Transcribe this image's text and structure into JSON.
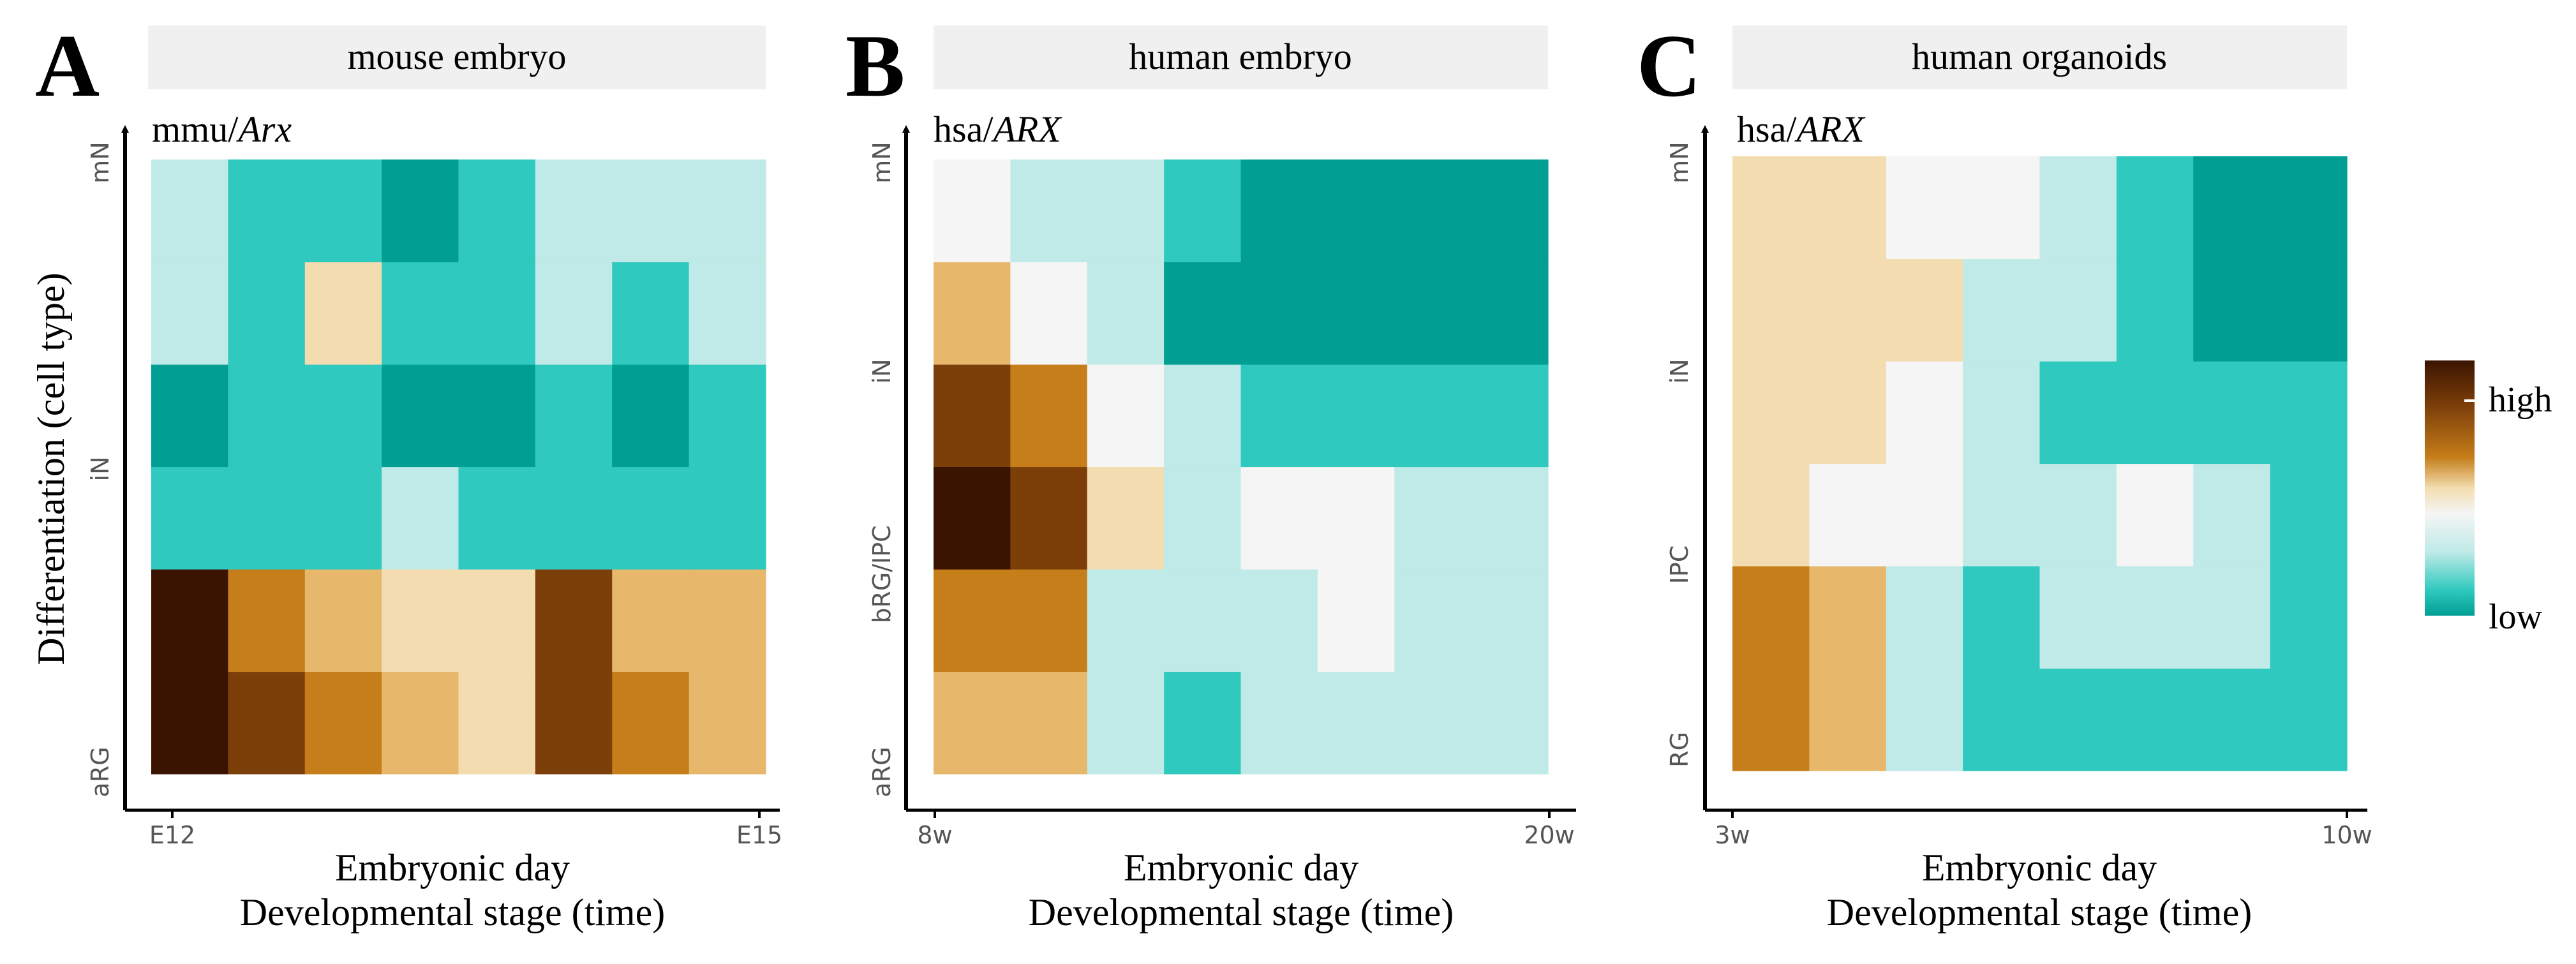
{
  "chart_data": [
    {
      "type": "heatmap",
      "panel_label": "A",
      "title": "mouse embryo",
      "gene_prefix": "mmu/",
      "gene": "Arx",
      "xlabel": "Embryonic day",
      "xlabel2": "Developmental stage (time)",
      "ylabel": "Differentiation (cell type)",
      "x_ticks": [
        "E12",
        "E15"
      ],
      "y_ticks": [
        "aRG",
        "iN",
        "mN"
      ],
      "rows": 6,
      "cols": 8,
      "values": [
        [
          1.0,
          0.85,
          0.7,
          0.6,
          0.5,
          0.9,
          0.7,
          0.65
        ],
        [
          0.95,
          0.8,
          0.6,
          0.55,
          0.45,
          0.85,
          0.6,
          0.6
        ],
        [
          0.1,
          0.15,
          0.15,
          0.2,
          0.15,
          0.1,
          0.15,
          0.15
        ],
        [
          0.05,
          0.1,
          0.1,
          0.05,
          0.05,
          0.1,
          0.05,
          0.1
        ],
        [
          0.2,
          0.15,
          0.45,
          0.1,
          0.15,
          0.2,
          0.15,
          0.2
        ],
        [
          0.25,
          0.15,
          0.1,
          0.05,
          0.15,
          0.2,
          0.3,
          0.25
        ]
      ]
    },
    {
      "type": "heatmap",
      "panel_label": "B",
      "title": "human embryo",
      "gene_prefix": "hsa/",
      "gene": "ARX",
      "xlabel": "Embryonic day",
      "xlabel2": "Developmental stage (time)",
      "ylabel": "",
      "x_ticks": [
        "8w",
        "20w"
      ],
      "y_ticks": [
        "aRG",
        "bRG/IPC",
        "iN",
        "mN"
      ],
      "rows": 6,
      "cols": 8,
      "values": [
        [
          0.65,
          0.6,
          0.25,
          0.1,
          0.2,
          0.3,
          0.3,
          0.25
        ],
        [
          0.8,
          0.75,
          0.3,
          0.2,
          0.3,
          0.35,
          0.3,
          0.3
        ],
        [
          0.95,
          0.85,
          0.45,
          0.3,
          0.35,
          0.35,
          0.3,
          0.25
        ],
        [
          0.9,
          0.8,
          0.35,
          0.2,
          0.15,
          0.1,
          0.15,
          0.1
        ],
        [
          0.6,
          0.35,
          0.2,
          0.05,
          0.05,
          0.05,
          0.05,
          0.05
        ],
        [
          0.4,
          0.3,
          0.2,
          0.1,
          0.05,
          0.05,
          0.05,
          0.05
        ]
      ]
    },
    {
      "type": "heatmap",
      "panel_label": "C",
      "title": "human organoids",
      "gene_prefix": "hsa/",
      "gene": "ARX",
      "xlabel": "Embryonic day",
      "xlabel2": "Developmental stage (time)",
      "ylabel": "",
      "x_ticks": [
        "3w",
        "10w"
      ],
      "y_ticks": [
        "RG",
        "IPC",
        "iN",
        "mN"
      ],
      "rows": 6,
      "cols": 8,
      "values": [
        [
          0.75,
          0.6,
          0.2,
          0.1,
          0.1,
          0.1,
          0.1,
          0.1
        ],
        [
          0.8,
          0.6,
          0.3,
          0.15,
          0.2,
          0.25,
          0.2,
          0.15
        ],
        [
          0.55,
          0.4,
          0.35,
          0.2,
          0.3,
          0.35,
          0.2,
          0.15
        ],
        [
          0.45,
          0.5,
          0.4,
          0.25,
          0.15,
          0.1,
          0.15,
          0.1
        ],
        [
          0.45,
          0.45,
          0.45,
          0.3,
          0.2,
          0.1,
          0.05,
          0.05
        ],
        [
          0.45,
          0.45,
          0.4,
          0.35,
          0.3,
          0.1,
          0.05,
          0.05
        ]
      ]
    }
  ],
  "legend": {
    "high": "high",
    "low": "low"
  },
  "colors": {
    "scale": [
      "#009e93",
      "#2fc9bf",
      "#bfeae7",
      "#f5f5f5",
      "#f3ddb0",
      "#e7b76b",
      "#c57e19",
      "#7d3f0a",
      "#3a1400"
    ],
    "title_bar": "#f0f0f0",
    "axis": "#000000"
  }
}
